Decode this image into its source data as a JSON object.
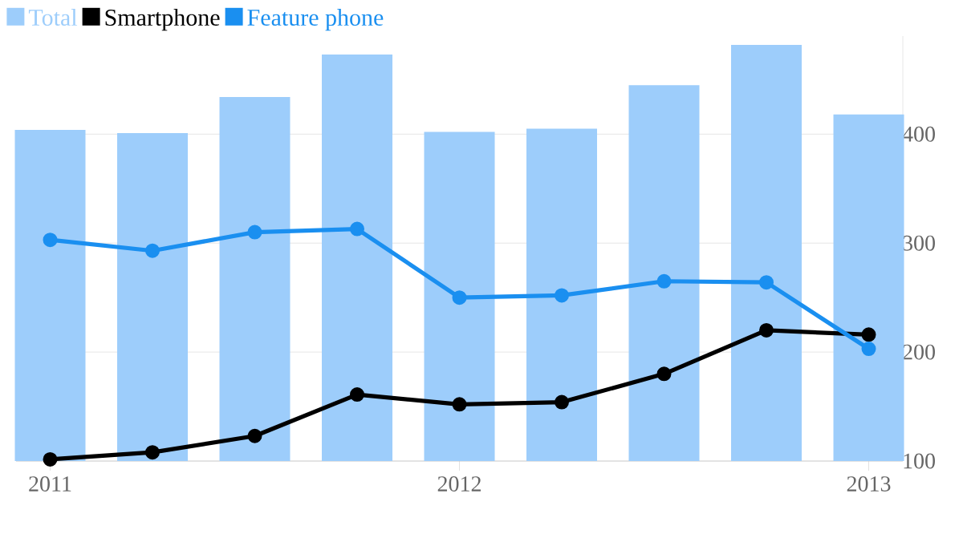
{
  "chart_data": {
    "type": "bar",
    "x": [
      "2011-01",
      "2011-04",
      "2011-07",
      "2011-10",
      "2012-01",
      "2012-04",
      "2012-07",
      "2012-10",
      "2013-01"
    ],
    "series": [
      {
        "name": "Total",
        "color": "#9dcdfb",
        "values": [
          404,
          401,
          434,
          473,
          402,
          405,
          445,
          482,
          418
        ]
      },
      {
        "name": "Smartphone",
        "type": "line",
        "color": "#000000",
        "values": [
          101.5,
          108,
          123,
          161,
          152,
          154,
          180,
          220,
          216
        ]
      },
      {
        "name": "Feature phone",
        "type": "line",
        "color": "#1a8ff0",
        "values": [
          303,
          293,
          310,
          313,
          250,
          252,
          265,
          264,
          203
        ]
      }
    ],
    "xlim": [
      "2010-12",
      "2013-02"
    ],
    "xticks": [
      {
        "value": "2011",
        "label": "2011"
      },
      {
        "value": "2012",
        "label": "2012"
      },
      {
        "value": "2013",
        "label": "2013"
      }
    ],
    "ylim": [
      100,
      490
    ],
    "yticks": [
      100,
      200,
      300,
      400
    ],
    "grid": "y",
    "legend": "top left",
    "marker": "circle"
  }
}
